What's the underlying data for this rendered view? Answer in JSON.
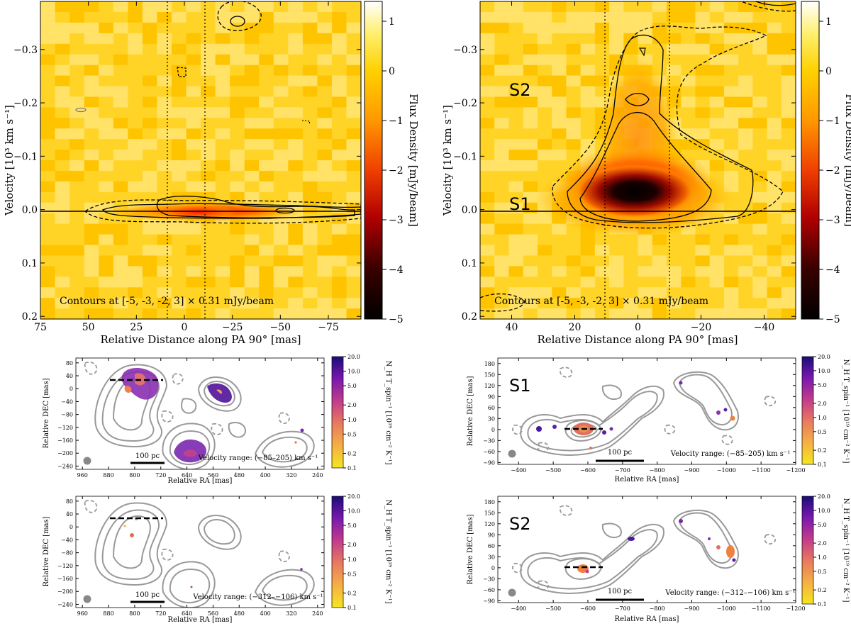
{
  "chart_data": [
    {
      "type": "heatmap",
      "panel": "pv-left",
      "xlabel": "Relative Distance along PA 90° [mas]",
      "ylabel": "Velocity [10³ km s⁻¹]",
      "xlim": [
        75,
        -92
      ],
      "ylim": [
        0.205,
        -0.39
      ],
      "xticks": [
        75,
        50,
        25,
        0,
        -25,
        -50,
        -75
      ],
      "xtick_labels": [
        "75",
        "50",
        "25",
        "0",
        "−25",
        "−50",
        "−75"
      ],
      "yticks": [
        -0.3,
        -0.2,
        -0.1,
        0.0,
        0.1,
        0.2
      ],
      "ytick_labels": [
        "−0.3",
        "−0.2",
        "−0.1",
        "0.0",
        "0.1",
        "0.2"
      ],
      "vlines": [
        10,
        -10
      ],
      "hline": 0.0,
      "annotation": "Contours at [-5, -3, -2, 3] × 0.31 mJy/beam",
      "colorbar": {
        "label": "Flux Density [mJy/beam]",
        "range": [
          -5,
          1.4
        ],
        "ticks": [
          1,
          0,
          -1,
          -2,
          -3,
          -4,
          -5
        ],
        "tick_labels": [
          "1",
          "0",
          "−1",
          "−2",
          "−3",
          "−4",
          "−5"
        ]
      }
    },
    {
      "type": "heatmap",
      "panel": "pv-right",
      "xlabel": "Relative Distance along PA 90° [mas]",
      "ylabel": "Velocity [10³ km s⁻¹]",
      "xlim": [
        50,
        -50
      ],
      "ylim": [
        0.205,
        -0.39
      ],
      "xticks": [
        40,
        20,
        0,
        -20,
        -40
      ],
      "xtick_labels": [
        "40",
        "20",
        "0",
        "−20",
        "−40"
      ],
      "yticks": [
        -0.3,
        -0.2,
        -0.1,
        0.0,
        0.1,
        0.2
      ],
      "ytick_labels": [
        "−0.3",
        "−0.2",
        "−0.1",
        "0.0",
        "0.1",
        "0.2"
      ],
      "vlines": [
        10,
        -10
      ],
      "hline": 0.0,
      "labels": [
        "S2",
        "S1"
      ],
      "annotation": "Contours at [-5, -3, -2, 3] × 0.31 mJy/beam",
      "colorbar": {
        "label": "Flux Density [mJy/beam]",
        "range": [
          -5,
          1.4
        ],
        "ticks": [
          1,
          0,
          -1,
          -2,
          -3,
          -4,
          -5
        ],
        "tick_labels": [
          "1",
          "0",
          "−1",
          "−2",
          "−3",
          "−4",
          "−5"
        ]
      }
    },
    {
      "type": "heatmap",
      "panel": "map-left-top",
      "xlabel": "Relative RA [mas]",
      "ylabel": "Relative DEC [mas]",
      "xlim": [
        980,
        220
      ],
      "ylim": [
        -250,
        95
      ],
      "xticks": [
        960,
        880,
        800,
        720,
        640,
        560,
        480,
        400,
        320,
        240
      ],
      "yticks": [
        80,
        40,
        0,
        -40,
        -80,
        -120,
        -160,
        -200,
        -240
      ],
      "scalebar": "100 pc",
      "velocity_range": "Velocity range: (−85–205) km s⁻¹",
      "colorbar": {
        "label": "N_H T_spin⁻¹ [10¹⁹ cm⁻² K⁻¹]",
        "ticks": [
          "20.0",
          "10.0",
          "5.0",
          "2.0",
          "1.0",
          "0.5",
          "0.2",
          "0.1"
        ]
      }
    },
    {
      "type": "heatmap",
      "panel": "map-right-top",
      "label": "S1",
      "xlabel": "Relative RA [mas]",
      "ylabel": "Relative DEC [mas]",
      "xlim": [
        -340,
        -1200
      ],
      "ylim": [
        -95,
        195
      ],
      "xticks": [
        -400,
        -500,
        -600,
        -700,
        -800,
        -900,
        -1000,
        -1100,
        -1200
      ],
      "yticks": [
        180,
        150,
        120,
        90,
        60,
        30,
        0,
        -30,
        -60,
        -90
      ],
      "scalebar": "100 pc",
      "velocity_range": "Velocity range: (−85–205) km s⁻¹",
      "colorbar": {
        "label": "N_H T_spin⁻¹ [10¹⁹ cm⁻² K⁻¹]",
        "ticks": [
          "20.0",
          "10.0",
          "5.0",
          "2.0",
          "1.0",
          "0.5",
          "0.2",
          "0.1"
        ]
      }
    },
    {
      "type": "heatmap",
      "panel": "map-left-bottom",
      "xlabel": "Relative RA [mas]",
      "ylabel": "Relative DEC [mas]",
      "xlim": [
        980,
        220
      ],
      "ylim": [
        -250,
        95
      ],
      "xticks": [
        960,
        880,
        800,
        720,
        640,
        560,
        480,
        400,
        320,
        240
      ],
      "yticks": [
        80,
        40,
        0,
        -40,
        -80,
        -120,
        -160,
        -200,
        -240
      ],
      "scalebar": "100 pc",
      "velocity_range": "Velocity range: (−312–−106) km s⁻¹",
      "colorbar": {
        "label": "N_H T_spin⁻¹ [10¹⁹ cm⁻² K⁻¹]",
        "ticks": [
          "20.0",
          "10.0",
          "5.0",
          "2.0",
          "1.0",
          "0.5",
          "0.2",
          "0.1"
        ]
      }
    },
    {
      "type": "heatmap",
      "panel": "map-right-bottom",
      "label": "S2",
      "xlabel": "Relative RA [mas]",
      "ylabel": "Relative DEC [mas]",
      "xlim": [
        -340,
        -1200
      ],
      "ylim": [
        -95,
        195
      ],
      "xticks": [
        -400,
        -500,
        -600,
        -700,
        -800,
        -900,
        -1000,
        -1100,
        -1200
      ],
      "yticks": [
        180,
        150,
        120,
        90,
        60,
        30,
        0,
        -30,
        -60,
        -90
      ],
      "scalebar": "100 pc",
      "velocity_range": "Velocity range: (−312–−106) km s⁻¹",
      "colorbar": {
        "label": "N_H T_spin⁻¹ [10¹⁹ cm⁻² K⁻¹]",
        "ticks": [
          "20.0",
          "10.0",
          "5.0",
          "2.0",
          "1.0",
          "0.5",
          "0.2",
          "0.1"
        ]
      }
    }
  ]
}
